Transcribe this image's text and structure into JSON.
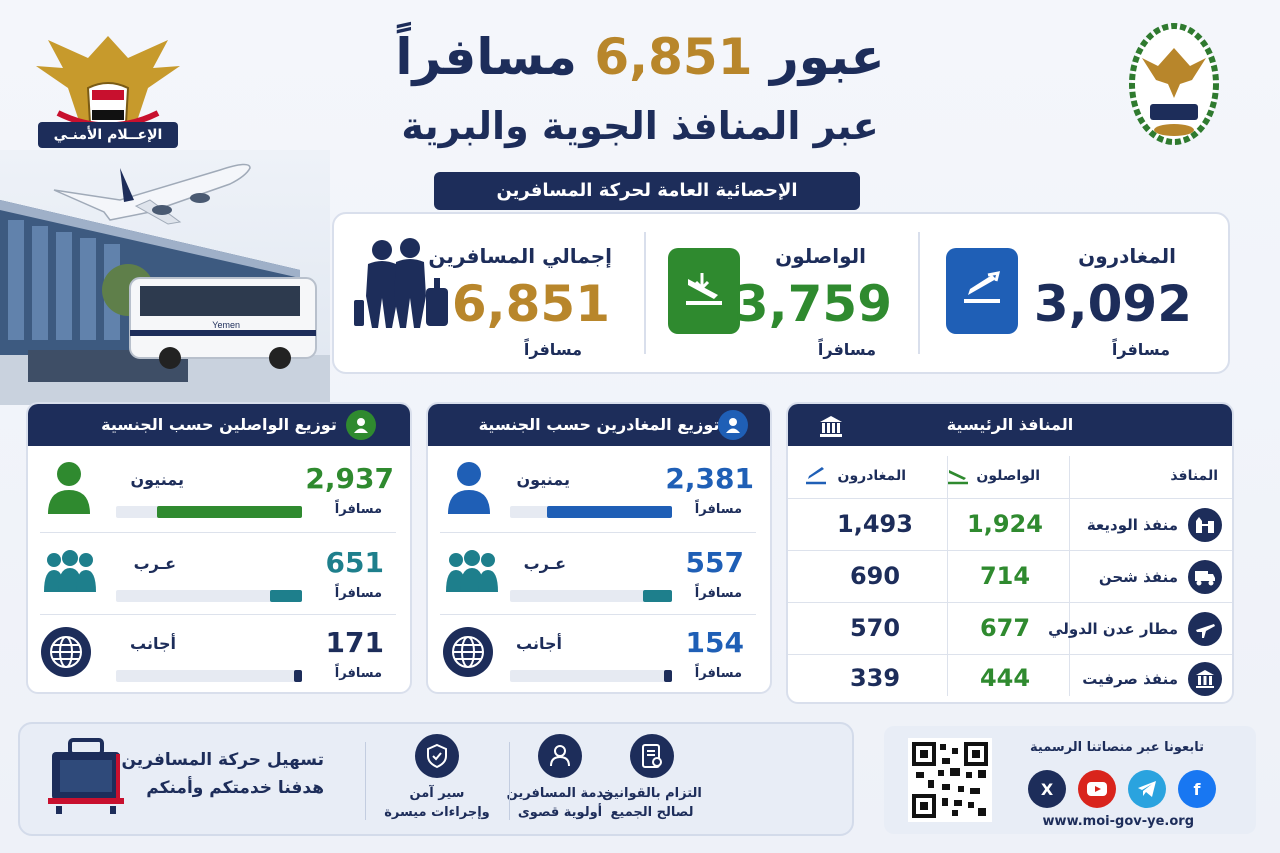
{
  "header": {
    "title_prefix": "عبور",
    "title_number": "6,851",
    "title_suffix": "مسافراً",
    "subtitle": "عبر المنافذ الجوية والبرية",
    "section_banner": "الإحصائية العامة لحركة المسافرين",
    "media_badge": "الإعــلام الأمنـي"
  },
  "stats": {
    "departures": {
      "label": "المغادرون",
      "value": "3,092",
      "unit": "مسافراً",
      "icon": "takeoff-icon"
    },
    "arrivals": {
      "label": "الواصلون",
      "value": "3,759",
      "unit": "مسافراً",
      "icon": "landing-icon"
    },
    "total": {
      "label": "إجمالي المسافرين",
      "value": "6,851",
      "unit": "مسافراً",
      "icon": "travelers-icon"
    }
  },
  "arrivals_by_nationality": {
    "title": "توزيع الواصلين حسب الجنسية",
    "rows": [
      {
        "name": "يمنيون",
        "value": "2,937",
        "unit": "مسافراً",
        "share": 0.78,
        "icon": "person-icon"
      },
      {
        "name": "عـرب",
        "value": "651",
        "unit": "مسافراً",
        "share": 0.173,
        "icon": "group-icon"
      },
      {
        "name": "أجانب",
        "value": "171",
        "unit": "مسافراً",
        "share": 0.045,
        "icon": "globe-icon"
      }
    ]
  },
  "departures_by_nationality": {
    "title": "توزيع المغادرين حسب الجنسية",
    "rows": [
      {
        "name": "يمنيون",
        "value": "2,381",
        "unit": "مسافراً",
        "share": 0.77,
        "icon": "person-icon"
      },
      {
        "name": "عـرب",
        "value": "557",
        "unit": "مسافراً",
        "share": 0.18,
        "icon": "group-icon"
      },
      {
        "name": "أجانب",
        "value": "154",
        "unit": "مسافراً",
        "share": 0.05,
        "icon": "globe-icon"
      }
    ]
  },
  "ports": {
    "title": "المنافذ الرئيسية",
    "col_port": "المنافذ",
    "col_arrivals": "الواصلون",
    "col_departures": "المغادرون",
    "rows": [
      {
        "name": "منفذ الوديعة",
        "arrivals": "1,924",
        "departures": "1,493",
        "icon": "border-gate-icon"
      },
      {
        "name": "منفذ شحن",
        "arrivals": "714",
        "departures": "690",
        "icon": "truck-icon"
      },
      {
        "name": "مطار عدن الدولي",
        "arrivals": "677",
        "departures": "570",
        "icon": "airplane-icon"
      },
      {
        "name": "منفذ صرفيت",
        "arrivals": "444",
        "departures": "339",
        "icon": "building-icon"
      }
    ]
  },
  "footer": {
    "slogan_line1": "تسهيل حركة المسافرين",
    "slogan_line2": "هدفنا خدمتكم وأمنكم",
    "pillars": [
      {
        "line1": "سير آمن",
        "line2": "وإجراءات ميسرة",
        "icon": "shield-icon"
      },
      {
        "line1": "خدمة المسافرين",
        "line2": "أولوية قصوى",
        "icon": "service-icon"
      },
      {
        "line1": "التزام بالقوانين",
        "line2": "لصالح الجميع",
        "icon": "document-icon"
      }
    ],
    "follow_label": "تابعونا عبر منصاتنا الرسمية",
    "website": "www.moi-gov-ye.org",
    "bus_text": "Yemen"
  },
  "colors": {
    "navy": "#1d2d5a",
    "gold": "#b8862b",
    "green": "#2f8a2f",
    "blue": "#1f5fb6",
    "teal": "#1e7f8c"
  }
}
